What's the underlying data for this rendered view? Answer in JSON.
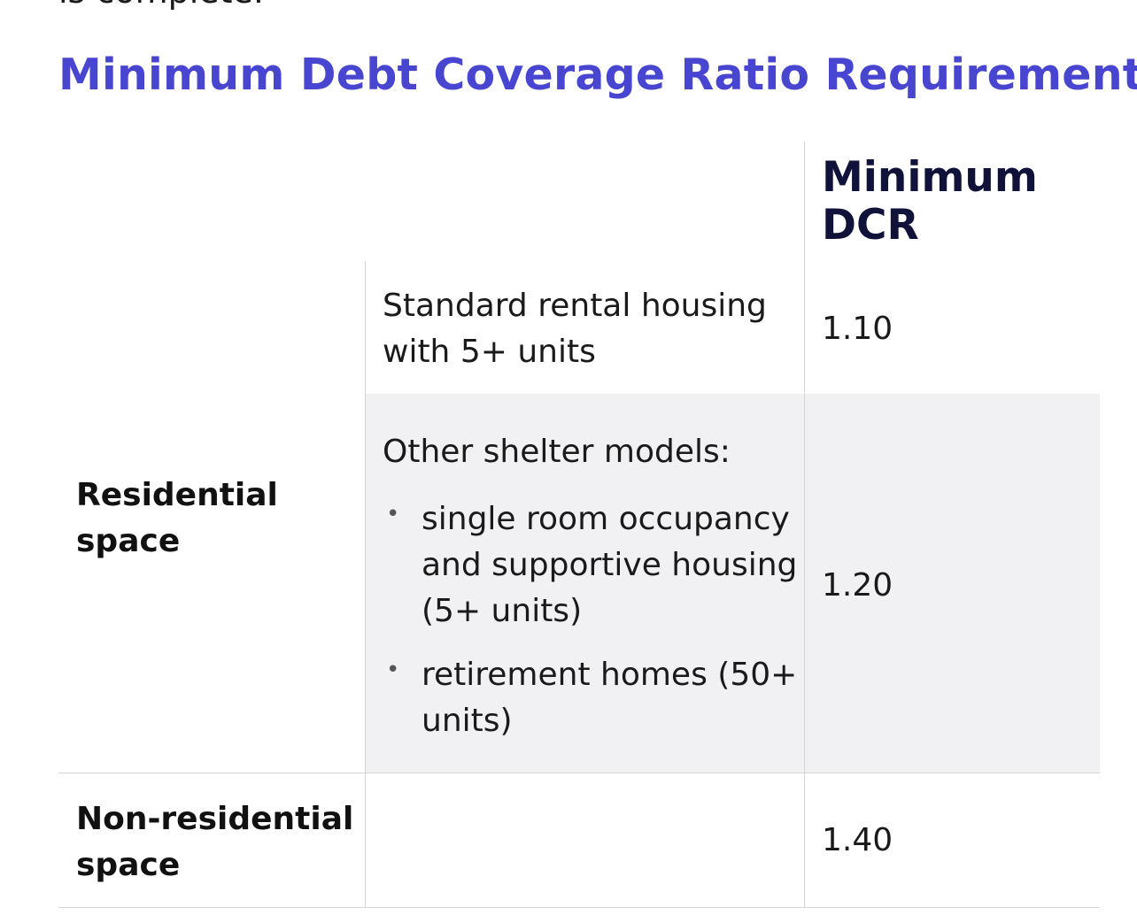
{
  "top_cut_text": "is complete.",
  "title": "Minimum Debt Coverage Ratio Requirements",
  "table": {
    "header": {
      "dcr": "Minimum DCR"
    },
    "rows": [
      {
        "category": "Residential space",
        "subrows": [
          {
            "description": "Standard rental housing with 5+ units",
            "dcr": "1.10"
          },
          {
            "description": "Other shelter models:",
            "bullets": [
              "single room occupancy and supportive housing (5+ units)",
              "retirement homes (50+ units)"
            ],
            "dcr": "1.20"
          }
        ]
      },
      {
        "category": "Non-residential space",
        "description": "",
        "dcr": "1.40"
      }
    ]
  },
  "colors": {
    "title": "#4845d1",
    "header_text": "#11123a",
    "shaded_row": "#f1f1f3",
    "rule": "#d6d6da"
  }
}
